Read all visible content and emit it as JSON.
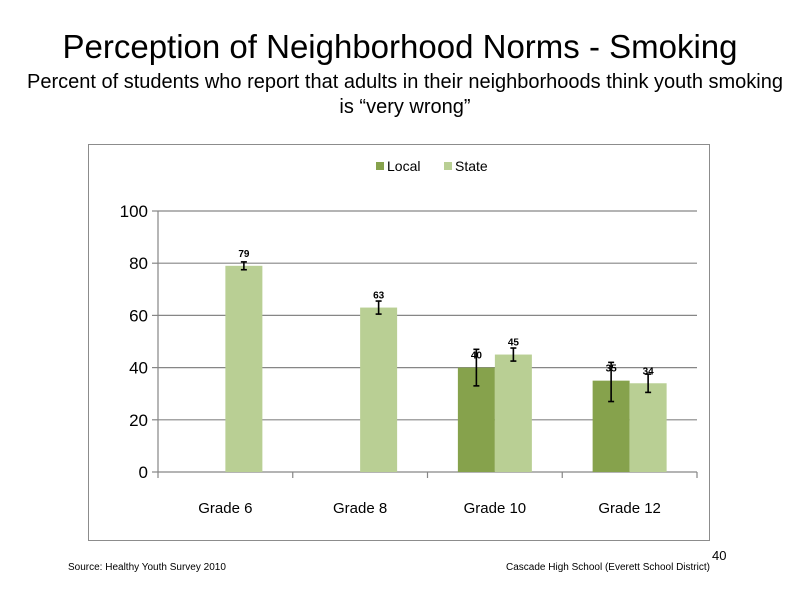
{
  "slide": {
    "title": "Perception of Neighborhood  Norms - Smoking",
    "subtitle": "Percent of students who report that adults in their neighborhoods think youth smoking is “very wrong”",
    "source": "Source: Healthy Youth Survey 2010",
    "school": "Cascade High School (Everett School District)",
    "page_number": "40"
  },
  "chart_data": {
    "type": "bar",
    "categories": [
      "Grade 6",
      "Grade 8",
      "Grade 10",
      "Grade 12"
    ],
    "series": [
      {
        "name": "Local",
        "color": "#86a24c",
        "values": [
          null,
          null,
          40,
          35
        ],
        "error_low": [
          null,
          null,
          33,
          27
        ],
        "error_high": [
          null,
          null,
          47,
          42
        ]
      },
      {
        "name": "State",
        "color": "#b9cf94",
        "values": [
          79,
          63,
          45,
          34
        ],
        "error_low": [
          77.5,
          60.5,
          42.5,
          30.5
        ],
        "error_high": [
          80.5,
          65.5,
          47.5,
          37.5
        ]
      }
    ],
    "ylim": [
      0,
      100
    ],
    "yticks": [
      0,
      20,
      40,
      60,
      80,
      100
    ],
    "data_labels": true,
    "grid": true,
    "legend_position": "top"
  }
}
